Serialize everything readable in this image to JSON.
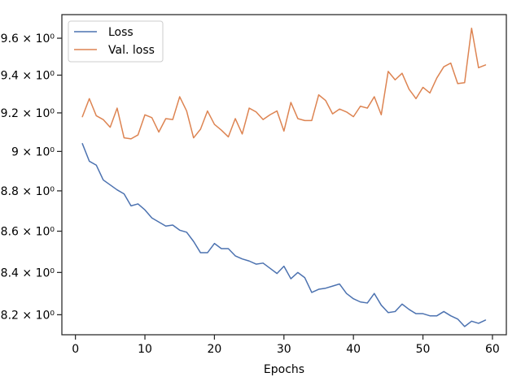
{
  "chart_data": {
    "type": "line",
    "title": "",
    "xlabel": "Epochs",
    "ylabel": "",
    "xlim": [
      -1.95,
      62.0
    ],
    "ylim": [
      8.107,
      9.73
    ],
    "y_scale": "log",
    "x_ticks": [
      0,
      10,
      20,
      30,
      40,
      50,
      60
    ],
    "y_ticks": [
      {
        "value": 8.2,
        "label": "8.2 × 10⁰"
      },
      {
        "value": 8.4,
        "label": "8.4 × 10⁰"
      },
      {
        "value": 8.6,
        "label": "8.6 × 10⁰"
      },
      {
        "value": 8.8,
        "label": "8.8 × 10⁰"
      },
      {
        "value": 9.0,
        "label": "9 × 10⁰"
      },
      {
        "value": 9.2,
        "label": "9.2 × 10⁰"
      },
      {
        "value": 9.4,
        "label": "9.4 × 10⁰"
      },
      {
        "value": 9.6,
        "label": "9.6 × 10⁰"
      }
    ],
    "grid": false,
    "legend_position": "top-left",
    "series": [
      {
        "name": "Loss",
        "color": "#4c72b0",
        "x": [
          1,
          2,
          3,
          4,
          5,
          6,
          7,
          8,
          9,
          10,
          11,
          12,
          13,
          14,
          15,
          16,
          17,
          18,
          19,
          20,
          21,
          22,
          23,
          24,
          25,
          26,
          27,
          28,
          29,
          30,
          31,
          32,
          33,
          34,
          35,
          36,
          37,
          38,
          39,
          40,
          41,
          42,
          43,
          44,
          45,
          46,
          47,
          48,
          49,
          50,
          51,
          52,
          53,
          54,
          55,
          56,
          57,
          58,
          59
        ],
        "values": [
          9.04,
          8.95,
          8.93,
          8.855,
          8.83,
          8.805,
          8.785,
          8.725,
          8.735,
          8.705,
          8.665,
          8.645,
          8.625,
          8.63,
          8.605,
          8.595,
          8.55,
          8.495,
          8.495,
          8.54,
          8.515,
          8.515,
          8.48,
          8.465,
          8.455,
          8.44,
          8.445,
          8.42,
          8.395,
          8.43,
          8.37,
          8.4,
          8.375,
          8.305,
          8.32,
          8.325,
          8.335,
          8.345,
          8.3,
          8.275,
          8.26,
          8.255,
          8.3,
          8.245,
          8.21,
          8.215,
          8.25,
          8.225,
          8.205,
          8.205,
          8.195,
          8.195,
          8.215,
          8.195,
          8.18,
          8.145,
          8.17,
          8.16,
          8.175
        ]
      },
      {
        "name": "Val. loss",
        "color": "#dd8452",
        "x": [
          1,
          2,
          3,
          4,
          5,
          6,
          7,
          8,
          9,
          10,
          11,
          12,
          13,
          14,
          15,
          16,
          17,
          18,
          19,
          20,
          21,
          22,
          23,
          24,
          25,
          26,
          27,
          28,
          29,
          30,
          31,
          32,
          33,
          34,
          35,
          36,
          37,
          38,
          39,
          40,
          41,
          42,
          43,
          44,
          45,
          46,
          47,
          48,
          49,
          50,
          51,
          52,
          53,
          54,
          55,
          56,
          57,
          58,
          59
        ],
        "values": [
          9.18,
          9.275,
          9.185,
          9.165,
          9.125,
          9.225,
          9.07,
          9.065,
          9.085,
          9.19,
          9.175,
          9.1,
          9.17,
          9.165,
          9.285,
          9.21,
          9.07,
          9.115,
          9.21,
          9.14,
          9.11,
          9.075,
          9.17,
          9.09,
          9.225,
          9.205,
          9.165,
          9.19,
          9.21,
          9.105,
          9.255,
          9.17,
          9.16,
          9.16,
          9.295,
          9.265,
          9.195,
          9.22,
          9.205,
          9.18,
          9.235,
          9.225,
          9.285,
          9.19,
          9.42,
          9.375,
          9.41,
          9.325,
          9.275,
          9.335,
          9.305,
          9.385,
          9.445,
          9.465,
          9.355,
          9.36,
          9.655,
          9.44,
          9.455
        ]
      }
    ]
  }
}
